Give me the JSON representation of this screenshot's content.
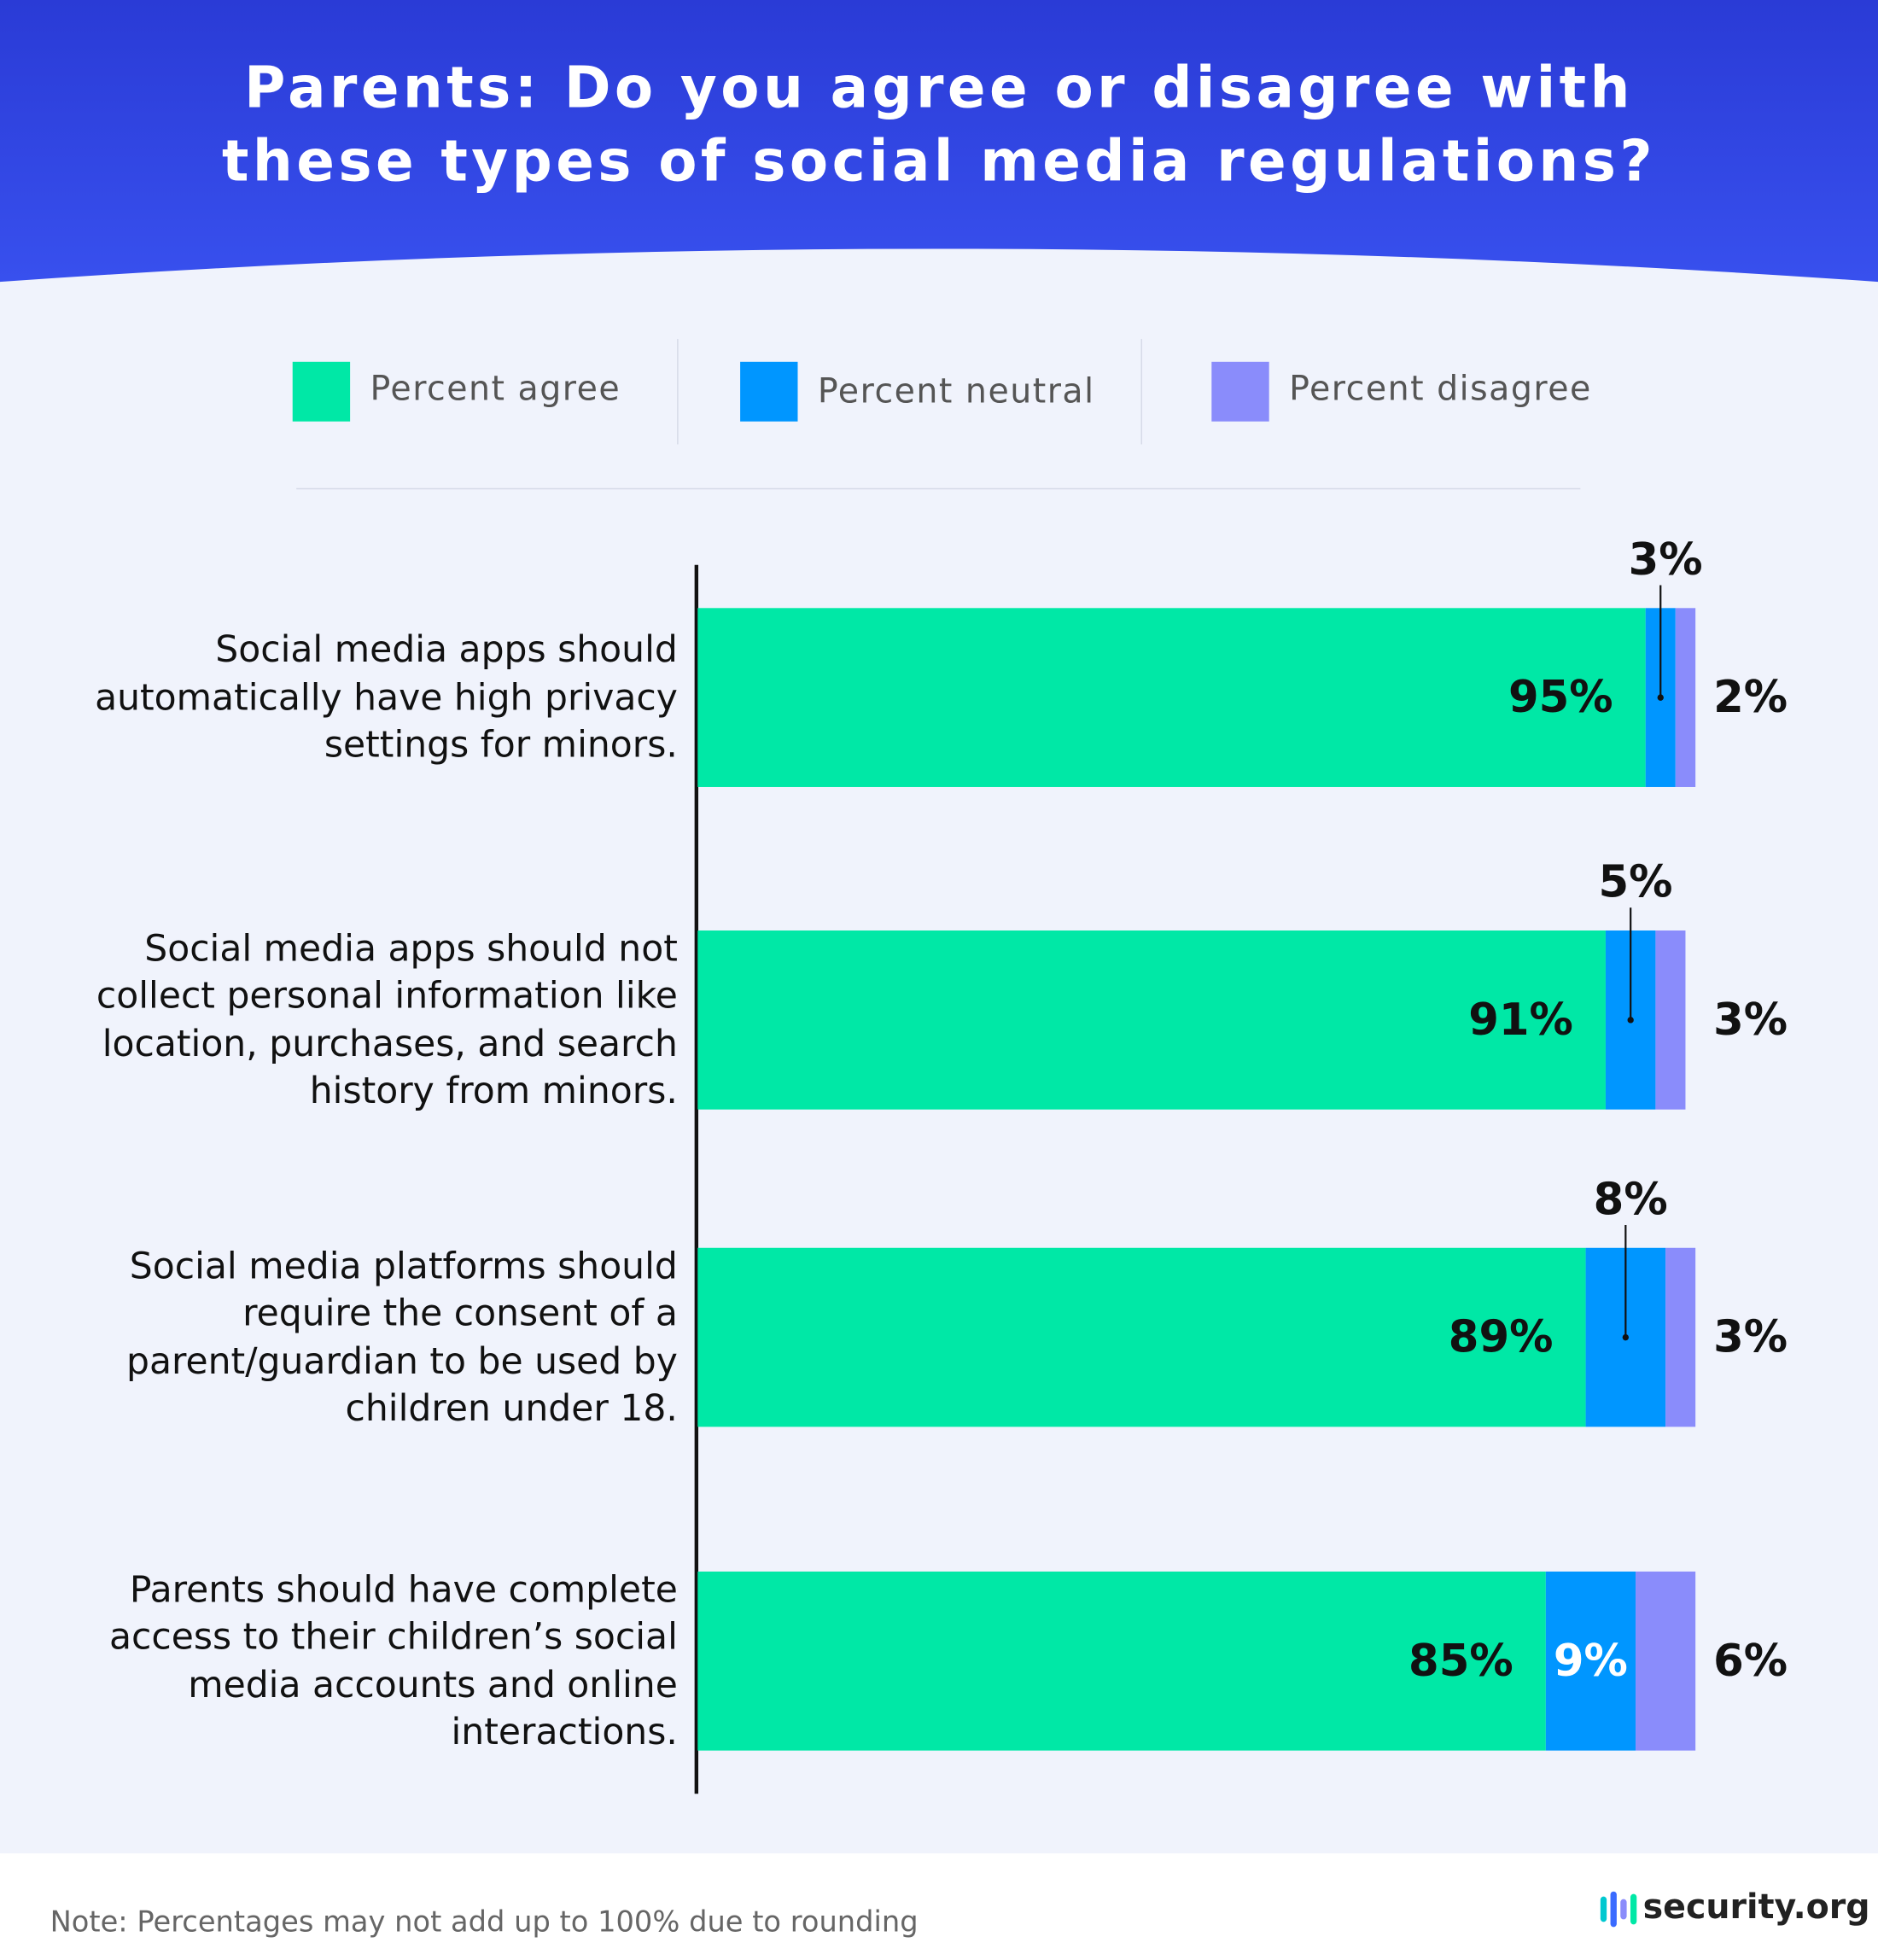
{
  "chart_data": {
    "type": "bar",
    "orientation": "horizontal",
    "stacked": true,
    "title": "Parents: Do you agree or disagree with these types of social media regulations?",
    "categories": [
      "Social media apps should automatically have high privacy settings for minors.",
      "Social media apps should not collect personal information like location, purchases, and search history from minors.",
      "Social media platforms should require the consent of a parent/guardian to be used by children under 18.",
      "Parents should have complete access to their children’s social media accounts and online interactions."
    ],
    "series": [
      {
        "name": "Percent agree",
        "color": "#00e8a6",
        "values": [
          95,
          91,
          89,
          85
        ],
        "value_labels": [
          "95%",
          "91%",
          "89%",
          "85%"
        ]
      },
      {
        "name": "Percent neutral",
        "color": "#0096ff",
        "values": [
          3,
          5,
          8,
          9
        ],
        "value_labels": [
          "3%",
          "5%",
          "8%",
          "9%"
        ]
      },
      {
        "name": "Percent disagree",
        "color": "#8a8cfb",
        "values": [
          2,
          3,
          3,
          6
        ],
        "value_labels": [
          "2%",
          "3%",
          "3%",
          "6%"
        ]
      }
    ],
    "xlim": [
      0,
      100
    ],
    "note": "Note: Percentages may not add up to 100% due to rounding",
    "source": "security.org"
  }
}
